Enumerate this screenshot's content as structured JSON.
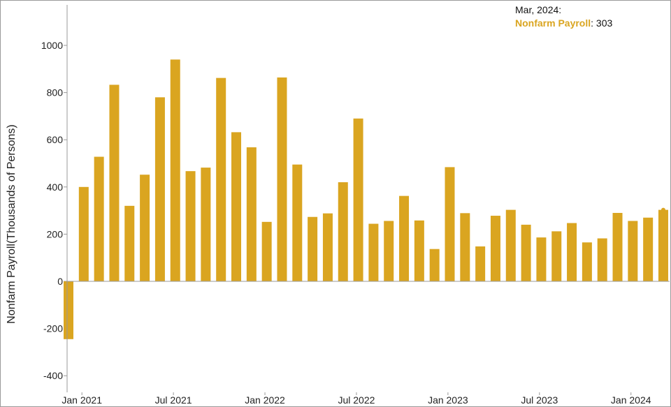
{
  "chart_data": {
    "type": "bar",
    "ylabel": "Nonfarm Payroll(Thousands of Persons)",
    "xlabel": "",
    "ylim": [
      -450,
      1150
    ],
    "yticks": [
      -400,
      -200,
      0,
      200,
      400,
      600,
      800,
      1000
    ],
    "grid": false,
    "xtick_labels": [
      {
        "label": "Jan 2021",
        "index": 0
      },
      {
        "label": "Jul 2021",
        "index": 6
      },
      {
        "label": "Jan 2022",
        "index": 12
      },
      {
        "label": "Jul 2022",
        "index": 18
      },
      {
        "label": "Jan 2023",
        "index": 24
      },
      {
        "label": "Jul 2023",
        "index": 30
      },
      {
        "label": "Jan 2024",
        "index": 36
      }
    ],
    "categories": [
      "Dec 2020",
      "Jan 2021",
      "Feb 2021",
      "Mar 2021",
      "Apr 2021",
      "May 2021",
      "Jun 2021",
      "Jul 2021",
      "Aug 2021",
      "Sep 2021",
      "Oct 2021",
      "Nov 2021",
      "Dec 2021",
      "Jan 2022",
      "Feb 2022",
      "Mar 2022",
      "Apr 2022",
      "May 2022",
      "Jun 2022",
      "Jul 2022",
      "Aug 2022",
      "Sep 2022",
      "Oct 2022",
      "Nov 2022",
      "Dec 2022",
      "Jan 2023",
      "Feb 2023",
      "Mar 2023",
      "Apr 2023",
      "May 2023",
      "Jun 2023",
      "Jul 2023",
      "Aug 2023",
      "Sep 2023",
      "Oct 2023",
      "Nov 2023",
      "Dec 2023",
      "Jan 2024",
      "Feb 2024",
      "Mar 2024"
    ],
    "series": [
      {
        "name": "Nonfarm Payroll",
        "color": "#DAA520",
        "values": [
          -245,
          400,
          528,
          833,
          320,
          452,
          780,
          940,
          467,
          482,
          862,
          632,
          568,
          252,
          864,
          495,
          273,
          288,
          420,
          690,
          244,
          256,
          362,
          258,
          137,
          484,
          289,
          148,
          278,
          303,
          240,
          186,
          212,
          247,
          165,
          182,
          290,
          256,
          270,
          303
        ]
      }
    ],
    "tooltip": {
      "date": "Mar, 2024:",
      "series": "Nonfarm Payroll",
      "value": ": 303"
    }
  }
}
